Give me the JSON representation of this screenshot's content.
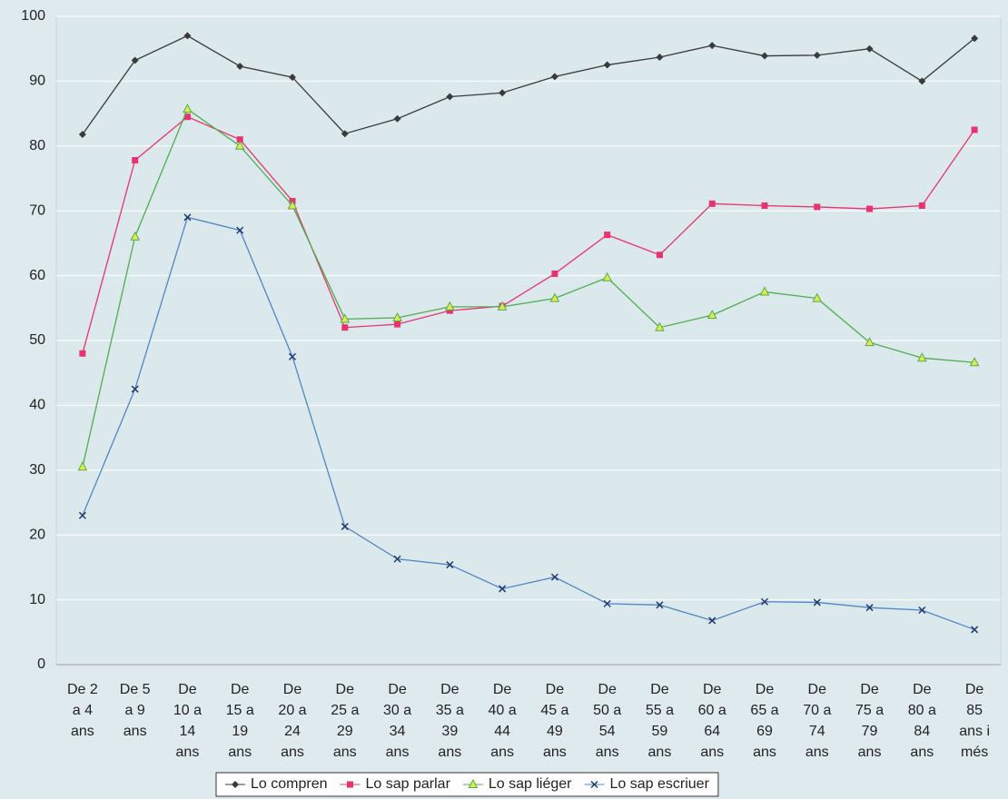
{
  "chart_data": {
    "type": "line",
    "categories": [
      [
        "De 2",
        "a 4",
        "ans"
      ],
      [
        "De 5",
        "a 9",
        "ans"
      ],
      [
        "De",
        "10 a",
        "14",
        "ans"
      ],
      [
        "De",
        "15 a",
        "19",
        "ans"
      ],
      [
        "De",
        "20 a",
        "24",
        "ans"
      ],
      [
        "De",
        "25 a",
        "29",
        "ans"
      ],
      [
        "De",
        "30 a",
        "34",
        "ans"
      ],
      [
        "De",
        "35 a",
        "39",
        "ans"
      ],
      [
        "De",
        "40 a",
        "44",
        "ans"
      ],
      [
        "De",
        "45 a",
        "49",
        "ans"
      ],
      [
        "De",
        "50 a",
        "54",
        "ans"
      ],
      [
        "De",
        "55 a",
        "59",
        "ans"
      ],
      [
        "De",
        "60 a",
        "64",
        "ans"
      ],
      [
        "De",
        "65 a",
        "69",
        "ans"
      ],
      [
        "De",
        "70 a",
        "74",
        "ans"
      ],
      [
        "De",
        "75 a",
        "79",
        "ans"
      ],
      [
        "De",
        "80 a",
        "84",
        "ans"
      ],
      [
        "De",
        "85",
        "ans i",
        "més"
      ]
    ],
    "series": [
      {
        "name": "Lo compren",
        "color": "#3a3a3a",
        "marker": "diamond",
        "values": [
          81.8,
          93.2,
          97,
          92.3,
          90.6,
          81.9,
          84.2,
          87.6,
          88.2,
          90.7,
          92.5,
          93.7,
          95.5,
          93.9,
          94,
          95,
          90,
          96.6
        ]
      },
      {
        "name": "Lo sap parlar",
        "color": "#e8336e",
        "marker": "square",
        "values": [
          48,
          77.8,
          84.5,
          81,
          71.5,
          52,
          52.5,
          54.6,
          55.3,
          60.3,
          66.3,
          63.2,
          71.1,
          70.8,
          70.6,
          70.3,
          70.8,
          82.5
        ]
      },
      {
        "name": "Lo sap liéger",
        "color": "#4caf50",
        "marker": "triangle",
        "values": [
          30.5,
          66,
          85.7,
          80,
          70.8,
          53.3,
          53.5,
          55.2,
          55.2,
          56.5,
          59.7,
          52,
          53.9,
          57.5,
          56.5,
          49.7,
          47.3,
          46.6
        ]
      },
      {
        "name": "Lo sap escriuer",
        "color": "#4f86c6",
        "marker": "x",
        "values": [
          23,
          42.5,
          69,
          67,
          47.5,
          21.3,
          16.3,
          15.4,
          11.7,
          13.5,
          9.4,
          9.2,
          6.8,
          9.7,
          9.6,
          8.8,
          8.4,
          5.4
        ]
      }
    ],
    "ylim": [
      0,
      100
    ],
    "yticks": [
      0,
      10,
      20,
      30,
      40,
      50,
      60,
      70,
      80,
      90,
      100
    ],
    "grid": true,
    "legend": "bottom"
  }
}
